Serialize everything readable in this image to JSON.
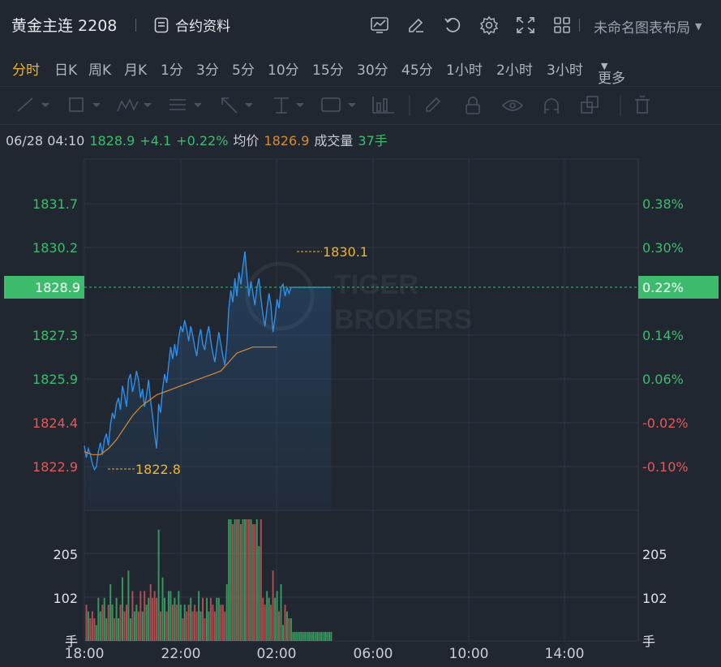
{
  "header": {
    "title": "黄金主连 2208",
    "contract_label": "合约资料",
    "layout_label": "未命名图表布局",
    "icons": [
      "chart-settings-icon",
      "edit-icon",
      "undo-icon",
      "gear-icon",
      "fullscreen-icon",
      "grid-layout-icon"
    ]
  },
  "periods": {
    "items": [
      "分时",
      "日K",
      "周K",
      "月K",
      "1分",
      "3分",
      "5分",
      "10分",
      "15分",
      "30分",
      "45分",
      "1小时",
      "2小时",
      "3小时",
      "更多"
    ],
    "active": "分时"
  },
  "drawing_tools": [
    "line-tool-icon",
    "rect-tool-icon",
    "wave-tool-icon",
    "fib-tool-icon",
    "arrow-tool-icon",
    "text-tool-icon",
    "label-tool-icon",
    "measure-tool-icon",
    "pen-tool-icon",
    "lock-icon",
    "eye-icon",
    "magnet-icon",
    "layers-icon",
    "trash-icon"
  ],
  "info": {
    "datetime": "06/28 04:10",
    "price": "1828.9",
    "change": "+4.1",
    "change_pct": "+0.22%",
    "avg_label": "均价",
    "avg_value": "1826.9",
    "volume_label": "成交量",
    "volume_value": "37手"
  },
  "colors": {
    "up": "#3dbc6d",
    "down": "#e25a5a",
    "accent": "#f0b429",
    "price_line": "#2f8fe8",
    "avg_line": "#d98b33",
    "background": "#212731"
  },
  "chart_data": {
    "type": "line",
    "price_axis": {
      "left_ticks": [
        "1831.7",
        "1830.2",
        "1828.9",
        "1827.3",
        "1825.9",
        "1824.4",
        "1822.9"
      ],
      "right_ticks": [
        "0.38%",
        "0.30%",
        "0.22%",
        "0.14%",
        "0.06%",
        "-0.02%",
        "-0.10%"
      ],
      "current_price_label": "1828.9",
      "current_pct_label": "0.22%",
      "ylim": [
        1822.9,
        1831.7
      ]
    },
    "time_axis": {
      "ticks": [
        "18:00",
        "22:00",
        "02:00",
        "06:00",
        "10:00",
        "14:00"
      ]
    },
    "annotations": {
      "high": "1830.1",
      "low": "1822.8"
    },
    "watermark": [
      "TIGER",
      "BROKERS"
    ],
    "series": [
      {
        "name": "price",
        "x": [
          0,
          5,
          10,
          15,
          20,
          25,
          30,
          35,
          40,
          45,
          50,
          55,
          60,
          65,
          70,
          75,
          80,
          85,
          90,
          95,
          100,
          105,
          110,
          115,
          120,
          125,
          130,
          135,
          140,
          145,
          150,
          155,
          160,
          165,
          170,
          175,
          180,
          185,
          190,
          195,
          200,
          205,
          210,
          215,
          220,
          225,
          230,
          235,
          240,
          245,
          250,
          255,
          260,
          265,
          270,
          275,
          280,
          285,
          290,
          295,
          300,
          305,
          310,
          315,
          320,
          325,
          330,
          335,
          340,
          345,
          350,
          355,
          360,
          365,
          370,
          375,
          380,
          385,
          390,
          395,
          400,
          405,
          410,
          415,
          420,
          425,
          430,
          435,
          440,
          445,
          450,
          455,
          460,
          465,
          470,
          475,
          480,
          485,
          490,
          495,
          500,
          505,
          510,
          515,
          520,
          525,
          530,
          535,
          540,
          545,
          550,
          555,
          560,
          565,
          570,
          575,
          580,
          585,
          590,
          595,
          600,
          605,
          610,
          615
        ],
        "values": [
          1823.6,
          1823.2,
          1823.5,
          1823.3,
          1823.0,
          1822.8,
          1822.9,
          1823.4,
          1823.7,
          1823.3,
          1823.8,
          1824.0,
          1823.6,
          1824.3,
          1824.7,
          1824.5,
          1825.0,
          1825.2,
          1824.8,
          1825.6,
          1825.3,
          1824.9,
          1825.8,
          1826.0,
          1825.4,
          1825.7,
          1826.1,
          1825.8,
          1825.2,
          1825.5,
          1824.9,
          1825.3,
          1825.8,
          1825.1,
          1824.6,
          1824.0,
          1823.5,
          1825.0,
          1824.7,
          1825.5,
          1826.0,
          1825.7,
          1826.3,
          1826.9,
          1826.5,
          1827.0,
          1826.6,
          1827.2,
          1827.6,
          1827.4,
          1827.8,
          1827.5,
          1827.1,
          1827.6,
          1827.3,
          1826.9,
          1826.6,
          1827.2,
          1827.5,
          1827.0,
          1826.8,
          1827.3,
          1827.6,
          1827.1,
          1826.7,
          1826.4,
          1826.9,
          1827.4,
          1827.0,
          1826.6,
          1826.3,
          1827.0,
          1828.2,
          1828.8,
          1828.4,
          1829.2,
          1828.6,
          1829.4,
          1829.0,
          1829.6,
          1830.1,
          1829.3,
          1828.6,
          1829.1,
          1828.7,
          1828.3,
          1828.9,
          1829.2,
          1828.5,
          1828.0,
          1827.6,
          1828.2,
          1828.7,
          1828.3,
          1827.4,
          1827.9,
          1828.5,
          1828.2,
          1828.9,
          1829.0,
          1828.6,
          1828.9,
          1828.7,
          1828.9,
          1828.9,
          1828.9,
          1828.9,
          1828.9,
          1828.9,
          1828.9,
          1828.9,
          1828.9,
          1828.9,
          1828.9,
          1828.9,
          1828.9,
          1828.9,
          1828.9,
          1828.9,
          1828.9,
          1828.9,
          1828.9,
          1828.9,
          1828.9
        ]
      },
      {
        "name": "average",
        "x": [
          0,
          20,
          40,
          60,
          80,
          100,
          120,
          140,
          160,
          180,
          200,
          220,
          240,
          260,
          280,
          300,
          320,
          340,
          360,
          380,
          400,
          420,
          440,
          460,
          480
        ],
        "values": [
          1823.4,
          1823.3,
          1823.3,
          1823.5,
          1823.8,
          1824.2,
          1824.6,
          1824.9,
          1825.1,
          1825.3,
          1825.4,
          1825.5,
          1825.6,
          1825.7,
          1825.8,
          1825.9,
          1826.0,
          1826.1,
          1826.4,
          1826.7,
          1826.8,
          1826.9,
          1826.9,
          1826.9,
          1826.9
        ]
      }
    ],
    "volume": {
      "yticks": [
        "205",
        "102"
      ],
      "unit_label": "手"
    }
  }
}
